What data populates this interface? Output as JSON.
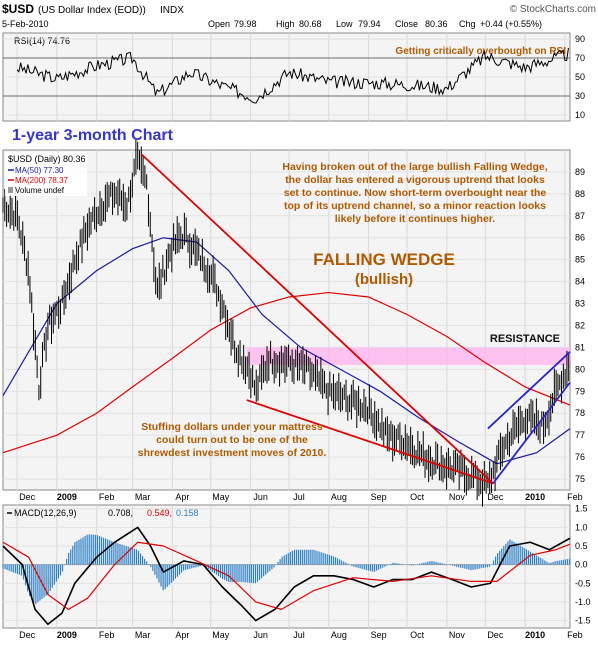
{
  "header": {
    "symbol": "$USD",
    "description": "(US Dollar Index (EOD))",
    "exchange": "INDX",
    "watermark": "© StockCharts.com",
    "date": "5-Feb-2010",
    "ohlc": {
      "open_label": "Open",
      "open": "79.98",
      "high_label": "High",
      "high": "80.68",
      "low_label": "Low",
      "low": "79.94",
      "close_label": "Close",
      "close": "80.36",
      "chg_label": "Chg",
      "chg": "+0.44 (+0.55%)"
    }
  },
  "rsi_panel": {
    "label": "RSI(14) 74.76",
    "note": "Getting critically overbought on RSI",
    "ticks": [
      "90",
      "70",
      "50",
      "30",
      "10"
    ]
  },
  "price_panel": {
    "title_annotation": "1-year 3-month Chart",
    "legend": {
      "main": "$USD (Daily) 80.36",
      "ma50": "MA(50) 77.30",
      "ma200": "MA(200) 78.37",
      "volume": "Volume undef"
    },
    "commentary": "Having broken out of the large bullish Falling Wedge, the dollar has entered a vigorous uptrend that looks set to continue. Now short-term overbought near the top of its uptrend channel, so a minor reaction looks likely before it continues higher.",
    "pattern_title": "FALLING WEDGE",
    "pattern_sub": "(bullish)",
    "resistance_label": "RESISTANCE",
    "mattress_note": "Stuffing dollars under your mattress could turn out to be one of the shrewdest investment moves of 2010.",
    "ticks": [
      "89",
      "88",
      "87",
      "86",
      "85",
      "84",
      "83",
      "82",
      "81",
      "80",
      "79",
      "78",
      "77",
      "76",
      "75"
    ]
  },
  "macd_panel": {
    "label_prefix": "MACD(12,26,9)",
    "macd_value": "0.708,",
    "signal_value": "0.549,",
    "hist_value": "0.158",
    "ticks": [
      "1.5",
      "1.0",
      "0.5",
      "0.0",
      "-0.5",
      "-1.0",
      "-1.5"
    ]
  },
  "x_axis": {
    "months": [
      "Dec",
      "2009",
      "Feb",
      "Mar",
      "Apr",
      "May",
      "Jun",
      "Jul",
      "Aug",
      "Sep",
      "Oct",
      "Nov",
      "Dec",
      "2010",
      "Feb"
    ]
  },
  "colors": {
    "panel_bg": "#f4f4f4",
    "price": "#000000",
    "ma50": "#1a1aa8",
    "ma200": "#e00000",
    "wedge": "#e00000",
    "channel": "#2525d0",
    "annotation": "#b05a00",
    "chart_title": "#3535d0",
    "resistance_band": "#ffb8ee",
    "macd": "#000000",
    "signal": "#e00000",
    "histogram": "#2a7fc7"
  },
  "chart_data": [
    {
      "type": "line",
      "name": "RSI(14)",
      "x": [
        "2008-12-01",
        "2009-01-01",
        "2009-02-01",
        "2009-03-01",
        "2009-03-20",
        "2009-04-15",
        "2009-05-15",
        "2009-06-05",
        "2009-07-01",
        "2009-08-01",
        "2009-09-01",
        "2009-10-01",
        "2009-11-01",
        "2009-12-01",
        "2010-01-01",
        "2010-02-05"
      ],
      "y": [
        60,
        48,
        62,
        70,
        32,
        55,
        38,
        28,
        55,
        45,
        44,
        42,
        38,
        72,
        60,
        74.76
      ],
      "ylim": [
        10,
        90
      ],
      "yticks": [
        90,
        70,
        50,
        30,
        10
      ],
      "reference_lines": [
        70,
        30
      ]
    },
    {
      "type": "line",
      "title": "$USD (Daily) 80.36",
      "ylim": [
        74.5,
        90
      ],
      "x_range": [
        "2008-11-20",
        "2010-02-05"
      ],
      "series": [
        {
          "name": "$USD (Daily) 80.36",
          "x": [
            "2008-11-20",
            "2008-12-01",
            "2008-12-10",
            "2008-12-18",
            "2008-12-25",
            "2009-01-05",
            "2009-01-15",
            "2009-01-25",
            "2009-02-05",
            "2009-02-15",
            "2009-02-25",
            "2009-03-04",
            "2009-03-12",
            "2009-03-20",
            "2009-03-31",
            "2009-04-10",
            "2009-04-20",
            "2009-04-30",
            "2009-05-10",
            "2009-05-20",
            "2009-05-31",
            "2009-06-05",
            "2009-06-15",
            "2009-06-30",
            "2009-07-15",
            "2009-07-31",
            "2009-08-15",
            "2009-08-31",
            "2009-09-15",
            "2009-09-30",
            "2009-10-15",
            "2009-10-31",
            "2009-11-15",
            "2009-11-25",
            "2009-12-03",
            "2009-12-15",
            "2009-12-31",
            "2010-01-15",
            "2010-01-25",
            "2010-02-05"
          ],
          "y": [
            87.5,
            87.0,
            84.5,
            79.2,
            82.0,
            83.0,
            85.0,
            86.5,
            87.5,
            88.0,
            87.5,
            89.5,
            88.5,
            83.5,
            85.5,
            86.2,
            85.3,
            84.5,
            83.0,
            81.0,
            80.0,
            79.0,
            80.5,
            80.3,
            80.0,
            79.0,
            78.6,
            78.3,
            77.0,
            76.7,
            76.0,
            75.6,
            75.3,
            75.0,
            74.7,
            76.5,
            77.8,
            77.4,
            79.0,
            80.36
          ]
        },
        {
          "name": "MA(50) 77.30",
          "x": [
            "2008-11-20",
            "2009-01-01",
            "2009-02-01",
            "2009-03-01",
            "2009-03-25",
            "2009-04-20",
            "2009-05-15",
            "2009-06-10",
            "2009-07-10",
            "2009-08-10",
            "2009-09-10",
            "2009-10-10",
            "2009-11-10",
            "2009-12-10",
            "2010-01-10",
            "2010-02-05"
          ],
          "y": [
            78.8,
            83.0,
            84.5,
            85.5,
            86.0,
            85.8,
            84.5,
            82.5,
            81.0,
            80.0,
            79.0,
            77.8,
            76.7,
            75.7,
            76.2,
            77.3
          ]
        },
        {
          "name": "MA(200) 78.37",
          "x": [
            "2008-11-20",
            "2009-01-01",
            "2009-02-01",
            "2009-03-01",
            "2009-04-01",
            "2009-05-01",
            "2009-06-01",
            "2009-07-01",
            "2009-08-01",
            "2009-09-01",
            "2009-10-01",
            "2009-11-01",
            "2009-12-01",
            "2010-01-01",
            "2010-02-05"
          ],
          "y": [
            76.2,
            77.0,
            78.0,
            79.2,
            80.5,
            81.8,
            82.8,
            83.3,
            83.5,
            83.3,
            82.5,
            81.5,
            80.3,
            79.2,
            78.37
          ]
        }
      ],
      "annotations": [
        {
          "type": "trendline",
          "label": "FALLING WEDGE upper",
          "from": [
            "2009-03-08",
            89.8
          ],
          "to": [
            "2009-12-07",
            74.8
          ]
        },
        {
          "type": "trendline",
          "label": "FALLING WEDGE lower",
          "from": [
            "2009-05-29",
            78.6
          ],
          "to": [
            "2009-12-07",
            74.8
          ]
        },
        {
          "type": "band",
          "label": "RESISTANCE",
          "y": [
            80.2,
            81.0
          ],
          "x": [
            "2009-05-29",
            "2010-02-05"
          ]
        },
        {
          "type": "trendline",
          "label": "uptrend channel upper",
          "from": [
            "2009-12-03",
            77.3
          ],
          "to": [
            "2010-02-05",
            80.8
          ]
        },
        {
          "type": "trendline",
          "label": "uptrend channel lower",
          "from": [
            "2009-12-07",
            74.8
          ],
          "to": [
            "2010-02-05",
            79.4
          ]
        }
      ]
    },
    {
      "type": "line",
      "title": "MACD(12,26,9)",
      "ylim": [
        -1.7,
        1.6
      ],
      "yticks": [
        1.5,
        1.0,
        0.5,
        0.0,
        -0.5,
        -1.0,
        -1.5
      ],
      "series": [
        {
          "name": "MACD(12,26,9)",
          "x": [
            "2008-11-20",
            "2008-12-05",
            "2008-12-15",
            "2008-12-25",
            "2009-01-05",
            "2009-01-15",
            "2009-02-01",
            "2009-02-15",
            "2009-03-05",
            "2009-03-15",
            "2009-03-25",
            "2009-04-10",
            "2009-04-25",
            "2009-05-10",
            "2009-05-25",
            "2009-06-05",
            "2009-06-20",
            "2009-07-05",
            "2009-07-20",
            "2009-08-05",
            "2009-08-20",
            "2009-09-05",
            "2009-09-20",
            "2009-10-05",
            "2009-10-20",
            "2009-11-05",
            "2009-11-20",
            "2009-12-05",
            "2009-12-20",
            "2010-01-05",
            "2010-01-20",
            "2010-02-05"
          ],
          "y": [
            0.5,
            0.0,
            -1.2,
            -1.6,
            -1.3,
            -0.5,
            0.2,
            0.6,
            1.0,
            0.5,
            -0.2,
            0.1,
            0.0,
            -0.6,
            -1.1,
            -1.5,
            -1.2,
            -0.6,
            -0.3,
            -0.3,
            -0.4,
            -0.6,
            -0.4,
            -0.4,
            -0.2,
            -0.4,
            -0.6,
            -0.5,
            0.5,
            0.6,
            0.4,
            0.708
          ]
        },
        {
          "name": "signal",
          "x": [
            "2008-11-20",
            "2008-12-10",
            "2008-12-25",
            "2009-01-10",
            "2009-01-25",
            "2009-02-15",
            "2009-03-05",
            "2009-03-25",
            "2009-04-20",
            "2009-05-15",
            "2009-06-05",
            "2009-06-25",
            "2009-07-20",
            "2009-08-20",
            "2009-09-20",
            "2009-10-20",
            "2009-11-20",
            "2009-12-10",
            "2010-01-05",
            "2010-01-25",
            "2010-02-05"
          ],
          "y": [
            0.6,
            0.2,
            -0.8,
            -1.2,
            -0.9,
            0.0,
            0.6,
            0.5,
            0.1,
            -0.3,
            -1.0,
            -1.2,
            -0.7,
            -0.35,
            -0.45,
            -0.3,
            -0.45,
            -0.45,
            0.25,
            0.4,
            0.549
          ]
        }
      ],
      "histogram_label": "0.158"
    }
  ]
}
